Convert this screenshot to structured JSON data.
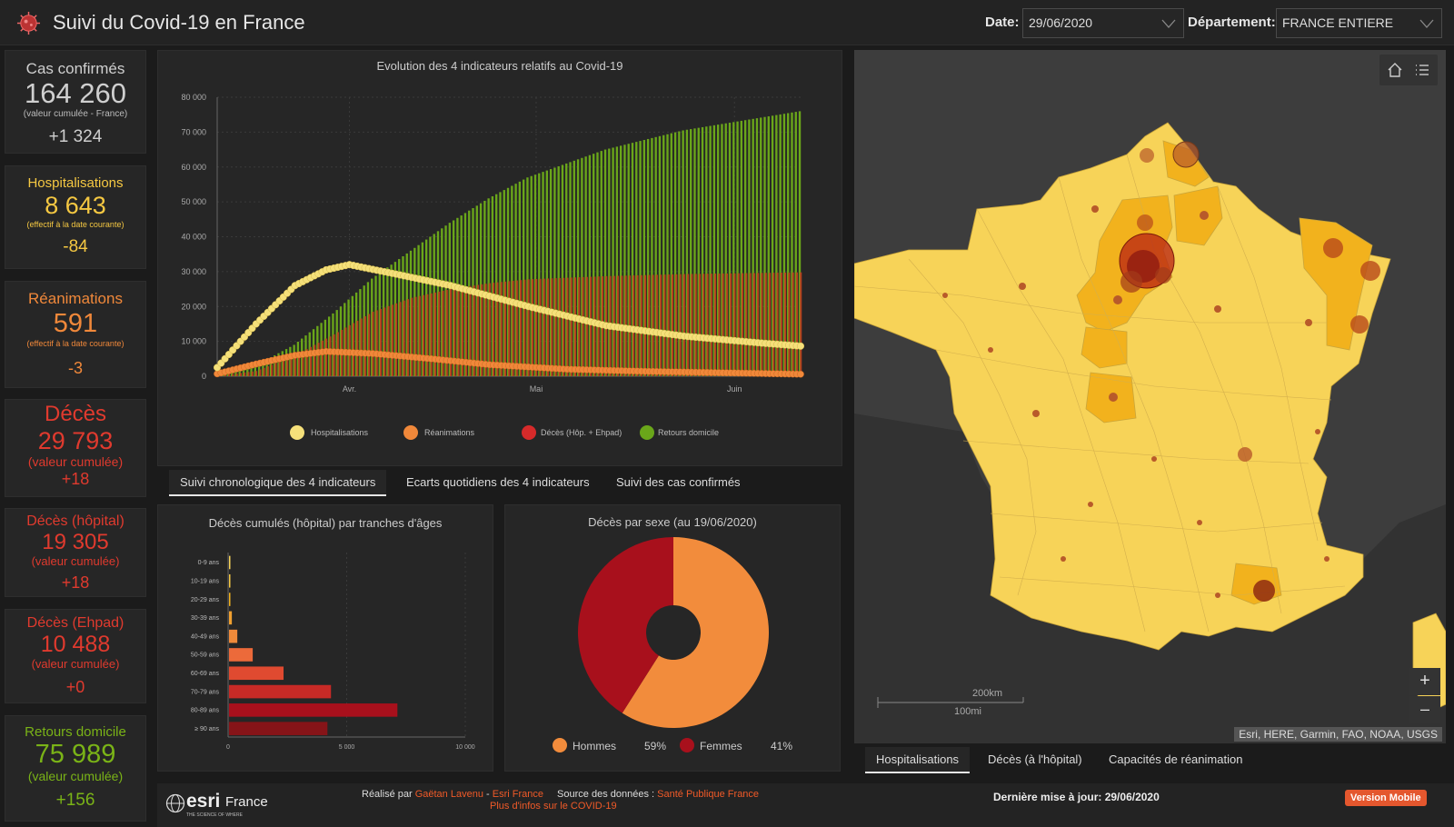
{
  "header": {
    "title": "Suivi du Covid-19 en France",
    "date_label": "Date:",
    "date_value": "29/06/2020",
    "dept_label": "Département:",
    "dept_value": "FRANCE ENTIERE"
  },
  "cards": {
    "confirmed": {
      "label": "Cas confirmés",
      "value": "164 260",
      "sub": "(valeur cumulée - France)",
      "delta": "+1 324"
    },
    "hosp": {
      "label": "Hospitalisations",
      "value": "8 643",
      "sub": "(effectif à la date courante)",
      "delta": "-84"
    },
    "rea": {
      "label": "Réanimations",
      "value": "591",
      "sub": "(effectif à la date courante)",
      "delta": "-3"
    },
    "deaths": {
      "label": "Décès",
      "value": "29 793",
      "sub": "(valeur cumulée)",
      "delta": "+18"
    },
    "deaths_hosp": {
      "label": "Décès (hôpital)",
      "value": "19 305",
      "sub": "(valeur cumulée)",
      "delta": "+18"
    },
    "deaths_ehpad": {
      "label": "Décès (Ehpad)",
      "value": "10 488",
      "sub": "(valeur cumulée)",
      "delta": "+0"
    },
    "returns": {
      "label": "Retours domicile",
      "value": "75 989",
      "sub": "(valeur cumulée)",
      "delta": "+156"
    }
  },
  "colors": {
    "confirmed": "#cfcfcf",
    "hosp": "#f5c842",
    "rea": "#f0883a",
    "deaths": "#e03a2e",
    "returns": "#7ab317",
    "map_base": "#f7d358",
    "map_mid": "#f2b21d",
    "map_high": "#e59a12"
  },
  "main_chart": {
    "title": "Evolution des 4 indicateurs relatifs au Covid-19",
    "legend": [
      "Hospitalisations",
      "Réanimations",
      "Décès (Hôp. + Ehpad)",
      "Retours domicile"
    ]
  },
  "chart_tabs": [
    "Suivi chronologique des 4 indicateurs",
    "Ecarts quotidiens des 4 indicateurs",
    "Suivi des cas confirmés"
  ],
  "map_tabs": [
    "Hospitalisations",
    "Décès (à l'hôpital)",
    "Capacités de réanimation"
  ],
  "map": {
    "attribution": "Esri, HERE, Garmin, FAO, NOAA, USGS",
    "scale_km": "200km",
    "scale_mi": "100mi",
    "zoom_in": "+",
    "zoom_out": "–"
  },
  "footer": {
    "brand": "esri",
    "brand_country": "France",
    "brand_tagline": "THE SCIENCE OF WHERE",
    "made_by": "Réalisé par",
    "author": "Gaëtan Lavenu",
    "sep": "-",
    "org": "Esri France",
    "source_label": "Source des données :",
    "source": "Santé Publique France",
    "more_info": "Plus d'infos sur le COVID-19",
    "last_update": "Dernière mise à jour: 29/06/2020",
    "mobile_button": "Version Mobile"
  },
  "chart_data": [
    {
      "type": "line",
      "title": "Evolution des 4 indicateurs relatifs au Covid-19",
      "x_ticks": [
        "Avr.",
        "Mai",
        "Juin"
      ],
      "y_ticks": [
        "0",
        "10 000",
        "20 000",
        "30 000",
        "40 000",
        "50 000",
        "60 000",
        "70 000",
        "80 000"
      ],
      "ylim": [
        0,
        80000
      ],
      "series": [
        {
          "name": "Hospitalisations",
          "type": "line",
          "keypoints": [
            [
              0,
              2500
            ],
            [
              10,
              15000
            ],
            [
              20,
              26000
            ],
            [
              28,
              30500
            ],
            [
              34,
              32000
            ],
            [
              45,
              29500
            ],
            [
              60,
              26000
            ],
            [
              80,
              20000
            ],
            [
              100,
              14500
            ],
            [
              120,
              11500
            ],
            [
              140,
              9500
            ],
            [
              150,
              8643
            ]
          ]
        },
        {
          "name": "Réanimations",
          "type": "line",
          "keypoints": [
            [
              0,
              700
            ],
            [
              10,
              3500
            ],
            [
              20,
              6000
            ],
            [
              28,
              7100
            ],
            [
              40,
              6500
            ],
            [
              55,
              5000
            ],
            [
              70,
              3300
            ],
            [
              90,
              2000
            ],
            [
              110,
              1400
            ],
            [
              130,
              1000
            ],
            [
              150,
              591
            ]
          ]
        },
        {
          "name": "Décès (Hôp. + Ehpad)",
          "type": "bar",
          "keypoints": [
            [
              0,
              100
            ],
            [
              10,
              1500
            ],
            [
              20,
              6000
            ],
            [
              30,
              12000
            ],
            [
              40,
              18500
            ],
            [
              50,
              22500
            ],
            [
              60,
              25000
            ],
            [
              70,
              26700
            ],
            [
              80,
              27800
            ],
            [
              100,
              28700
            ],
            [
              120,
              29300
            ],
            [
              150,
              29793
            ]
          ]
        },
        {
          "name": "Retours domicile",
          "type": "bar",
          "keypoints": [
            [
              0,
              400
            ],
            [
              10,
              3000
            ],
            [
              20,
              9000
            ],
            [
              30,
              18000
            ],
            [
              40,
              28000
            ],
            [
              50,
              36000
            ],
            [
              60,
              44000
            ],
            [
              70,
              51000
            ],
            [
              80,
              57000
            ],
            [
              100,
              65000
            ],
            [
              120,
              70500
            ],
            [
              150,
              75989
            ]
          ]
        }
      ]
    },
    {
      "type": "bar",
      "title": "Décès cumulés (hôpital) par tranches d'âges",
      "categories": [
        "0-9 ans",
        "10-19 ans",
        "20-29 ans",
        "30-39 ans",
        "40-49 ans",
        "50-59 ans",
        "60-69 ans",
        "70-79 ans",
        "80-89 ans",
        "≥ 90 ans"
      ],
      "values": [
        5,
        8,
        40,
        120,
        350,
        1000,
        2300,
        4300,
        7100,
        4150
      ],
      "x_ticks": [
        "0",
        "5 000",
        "10 000"
      ],
      "xlim": [
        0,
        10000
      ]
    },
    {
      "type": "pie",
      "title": "Décès par sexe (au 19/06/2020)",
      "labels": [
        "Hommes",
        "Femmes"
      ],
      "values": [
        59,
        41
      ],
      "value_labels": [
        "59%",
        "41%"
      ]
    }
  ]
}
